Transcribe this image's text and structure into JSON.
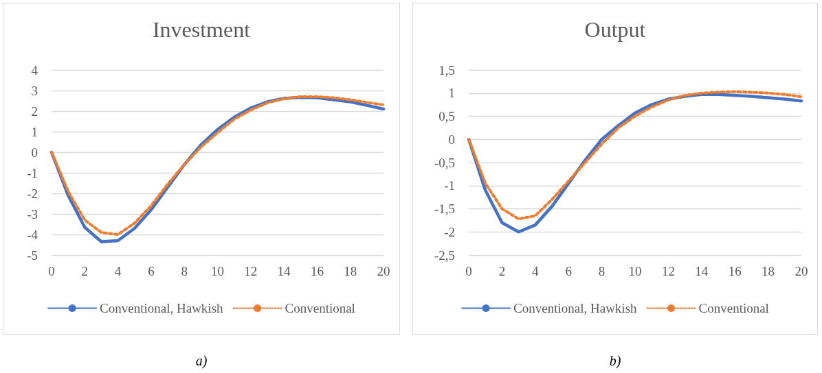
{
  "chart_data": [
    {
      "type": "line",
      "title": "Investment",
      "x": [
        0,
        1,
        2,
        3,
        4,
        5,
        6,
        7,
        8,
        9,
        10,
        11,
        12,
        13,
        14,
        15,
        16,
        17,
        18,
        19,
        20
      ],
      "xlim": [
        0,
        20
      ],
      "xticks": [
        0,
        2,
        4,
        6,
        8,
        10,
        12,
        14,
        16,
        18,
        20
      ],
      "ylim": [
        -5,
        4
      ],
      "yticks": [
        -5,
        -4,
        -3,
        -2,
        -1,
        0,
        1,
        2,
        3,
        4
      ],
      "grid": "y",
      "legend": "bottom",
      "marker": "none",
      "series": [
        {
          "name": "Conventional, Hawkish",
          "color": "#4472c4",
          "line_style": "solid",
          "values": [
            0,
            -2.1,
            -3.65,
            -4.35,
            -4.3,
            -3.7,
            -2.8,
            -1.7,
            -0.6,
            0.35,
            1.1,
            1.7,
            2.15,
            2.45,
            2.62,
            2.67,
            2.65,
            2.55,
            2.45,
            2.28,
            2.1
          ]
        },
        {
          "name": "Conventional",
          "color": "#ed7d31",
          "line_style": "dotted",
          "values": [
            0,
            -1.9,
            -3.3,
            -3.9,
            -4.0,
            -3.45,
            -2.6,
            -1.55,
            -0.6,
            0.25,
            0.95,
            1.6,
            2.05,
            2.4,
            2.6,
            2.7,
            2.7,
            2.65,
            2.55,
            2.42,
            2.3
          ]
        }
      ],
      "annotations": [
        "a)"
      ]
    },
    {
      "type": "line",
      "title": "Output",
      "x": [
        0,
        1,
        2,
        3,
        4,
        5,
        6,
        7,
        8,
        9,
        10,
        11,
        12,
        13,
        14,
        15,
        16,
        17,
        18,
        19,
        20
      ],
      "xlim": [
        0,
        20
      ],
      "xticks": [
        0,
        2,
        4,
        6,
        8,
        10,
        12,
        14,
        16,
        18,
        20
      ],
      "ylim": [
        -2.5,
        1.5
      ],
      "yticks": [
        {
          "value": -2.5,
          "label": "-2,5"
        },
        -2,
        {
          "value": -1.5,
          "label": "-1,5"
        },
        -1,
        {
          "value": -0.5,
          "label": "-0,5"
        },
        0,
        {
          "value": 0.5,
          "label": "0,5"
        },
        1,
        {
          "value": 1.5,
          "label": "1,5"
        }
      ],
      "grid": "y",
      "legend": "bottom",
      "marker": "none",
      "series": [
        {
          "name": "Conventional, Hawkish",
          "color": "#4472c4",
          "line_style": "solid",
          "values": [
            0,
            -1.1,
            -1.8,
            -2.0,
            -1.85,
            -1.45,
            -0.95,
            -0.45,
            0,
            0.3,
            0.57,
            0.75,
            0.87,
            0.93,
            0.97,
            0.97,
            0.95,
            0.93,
            0.9,
            0.87,
            0.83
          ]
        },
        {
          "name": "Conventional",
          "color": "#ed7d31",
          "line_style": "dotted",
          "values": [
            0,
            -0.95,
            -1.5,
            -1.72,
            -1.65,
            -1.3,
            -0.9,
            -0.5,
            -0.1,
            0.25,
            0.5,
            0.7,
            0.85,
            0.95,
            1.0,
            1.02,
            1.03,
            1.02,
            1.0,
            0.97,
            0.92
          ]
        }
      ],
      "annotations": [
        "b)"
      ]
    }
  ]
}
